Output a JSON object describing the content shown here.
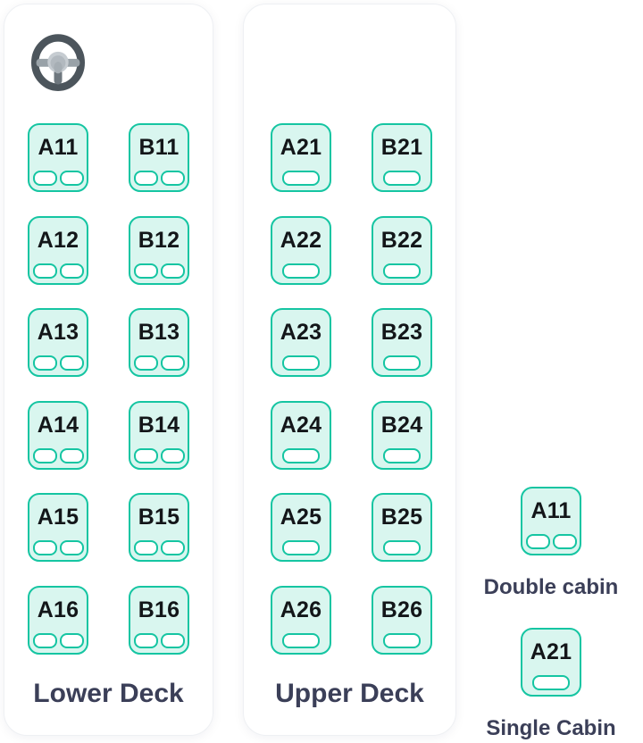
{
  "decks": [
    {
      "name": "Lower Deck",
      "berths_per_cabin": 2,
      "has_driver_icon": true,
      "seats": [
        {
          "label": "A11"
        },
        {
          "label": "B11"
        },
        {
          "label": "A12"
        },
        {
          "label": "B12"
        },
        {
          "label": "A13"
        },
        {
          "label": "B13"
        },
        {
          "label": "A14"
        },
        {
          "label": "B14"
        },
        {
          "label": "A15"
        },
        {
          "label": "B15"
        },
        {
          "label": "A16"
        },
        {
          "label": "B16"
        }
      ]
    },
    {
      "name": "Upper Deck",
      "berths_per_cabin": 1,
      "has_driver_icon": false,
      "seats": [
        {
          "label": "A21"
        },
        {
          "label": "B21"
        },
        {
          "label": "A22"
        },
        {
          "label": "B22"
        },
        {
          "label": "A23"
        },
        {
          "label": "B23"
        },
        {
          "label": "A24"
        },
        {
          "label": "B24"
        },
        {
          "label": "A25"
        },
        {
          "label": "B25"
        },
        {
          "label": "A26"
        },
        {
          "label": "B26"
        }
      ]
    }
  ],
  "legend": [
    {
      "seat_label": "A11",
      "berths": 2,
      "caption": "Double cabin"
    },
    {
      "seat_label": "A21",
      "berths": 1,
      "caption": "Single Cabin"
    }
  ],
  "icons": {
    "driver": "steering-wheel-icon"
  },
  "colors": {
    "seat_border": "#15c5a2",
    "seat_fill": "#d9f6ef",
    "berth_fill": "#ffffff",
    "seat_label_text": "#131619",
    "heading_text": "#3b3f58",
    "panel_background": "#ffffff"
  }
}
